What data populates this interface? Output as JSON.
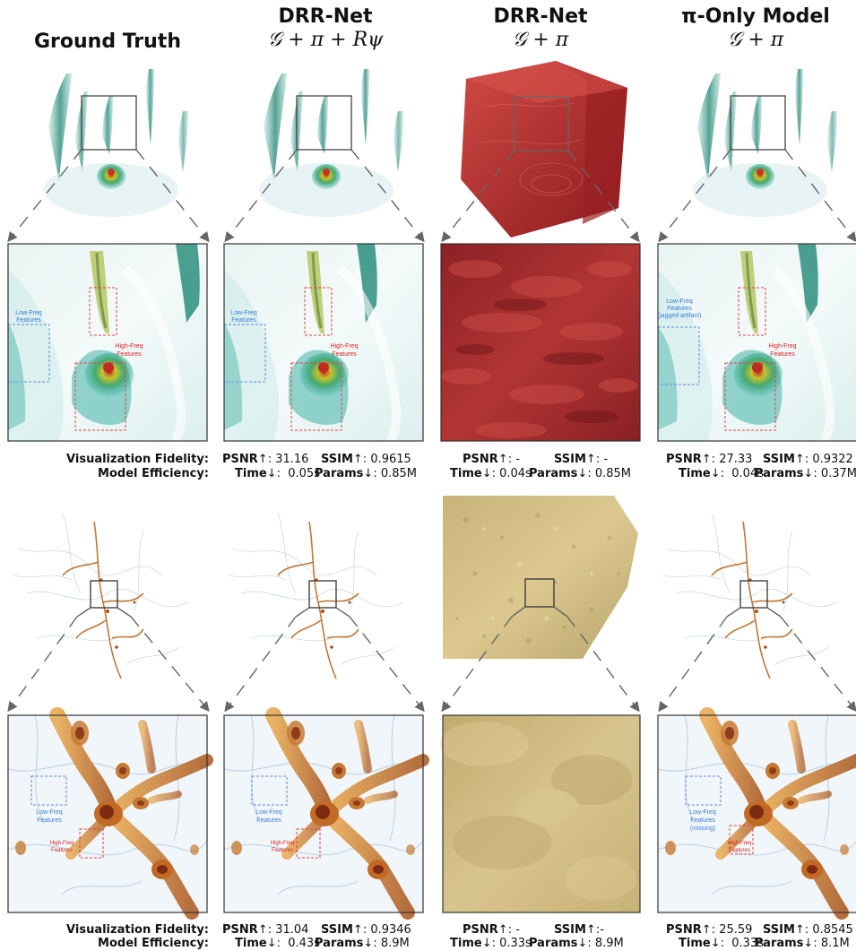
{
  "headers": {
    "ground_truth": "Ground Truth",
    "col2_title": "DRR-Net",
    "col2_formula": "𝒢 + π + Rψ",
    "col3_title": "DRR-Net",
    "col3_formula": "𝒢 + π",
    "col4_title": "π-Only Model",
    "col4_formula": "𝒢 + π"
  },
  "annotations": {
    "low_freq": "Low-Freq",
    "features": "Features",
    "high_freq": "High-Freq",
    "jagged": "(jagged artifact)",
    "missing": "(missing)"
  },
  "row_labels": {
    "fidelity": "Visualization Fidelity:",
    "efficiency": "Model Efficiency:"
  },
  "metric_names": {
    "psnr": "PSNR",
    "ssim": "SSIM",
    "time": "Time",
    "params": "Params",
    "up": "↑",
    "down": "↓"
  },
  "row1_metrics": {
    "c2": {
      "psnr": "31.16",
      "ssim": "0.9615",
      "time": "0.05s",
      "params": "0.85M"
    },
    "c3": {
      "psnr": "-",
      "ssim": "-",
      "time": "0.04s",
      "params": "0.85M"
    },
    "c4": {
      "psnr": "27.33",
      "ssim": "0.9322",
      "time": "0.04s",
      "params": "0.37M"
    }
  },
  "row2_metrics": {
    "c2": {
      "psnr": "31.04",
      "ssim": "0.9346",
      "time": "0.43s",
      "params": "8.9M"
    },
    "c3": {
      "psnr": "-",
      "ssim": "-",
      "time": "0.33s",
      "params": "8.9M"
    },
    "c4": {
      "psnr": "25.59",
      "ssim": "0.8545",
      "time": "0.33s",
      "params": "8.1M"
    }
  },
  "colors": {
    "teal": "#2f9e8f",
    "red_cube": "#b0282a",
    "sand": "#c9b67a",
    "orange_vein": "#c27a2b",
    "annotation_blue": "#3b7bd4",
    "annotation_red": "#e02020"
  }
}
